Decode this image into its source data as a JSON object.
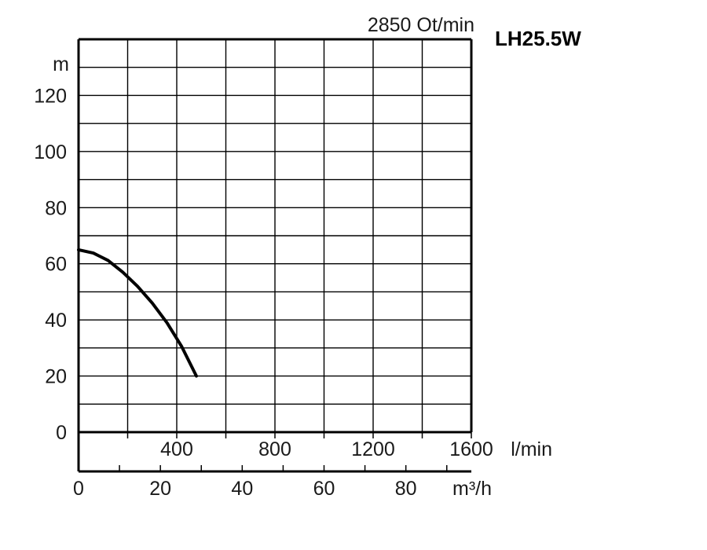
{
  "chart_data": {
    "type": "line",
    "model": "LH25.5W",
    "speed_label": "2850 Ot/min",
    "ylabel": "m",
    "xlabel_flow_lmin": "l/min",
    "xlabel_flow_m3h": "m³/h",
    "ylim": [
      0,
      140
    ],
    "xlim_lmin": [
      0,
      1600
    ],
    "xlim_m3h": [
      0,
      96
    ],
    "y_ticks": [
      0,
      20,
      40,
      60,
      80,
      100,
      120
    ],
    "x_ticks_lmin": [
      400,
      800,
      1200,
      1600
    ],
    "x_ticks_m3h": [
      0,
      20,
      40,
      60,
      80
    ],
    "grid": true,
    "series": [
      {
        "x_lmin": [
          0,
          60,
          120,
          180,
          240,
          300,
          360,
          420,
          480
        ],
        "y": [
          65,
          63.8,
          61.2,
          57,
          52,
          46,
          39,
          30.5,
          20
        ]
      }
    ]
  }
}
